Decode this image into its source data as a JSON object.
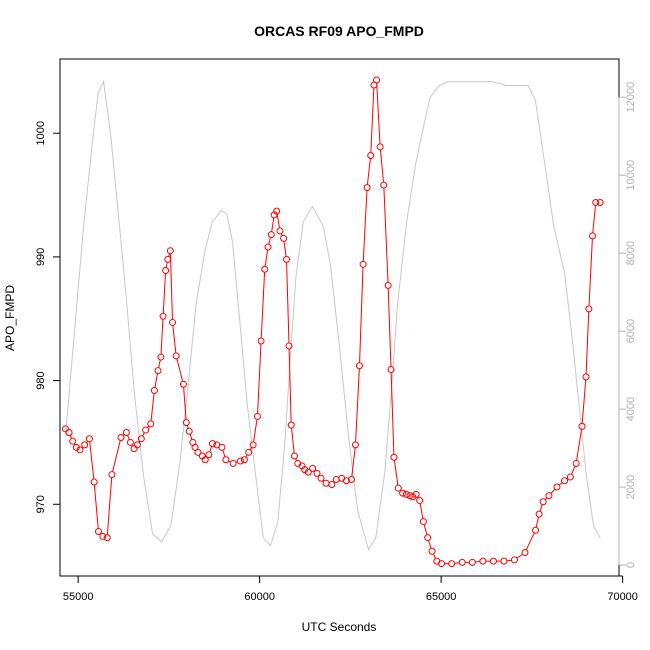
{
  "chart_data": {
    "type": "line",
    "title": "ORCAS RF09 APO_FMPD",
    "xlabel": "UTC Seconds",
    "ylabel": "APO_FMPD",
    "xlim": [
      54500,
      69900
    ],
    "ylim": [
      964.2,
      1006.0
    ],
    "y2lim": [
      -280,
      12980
    ],
    "x_ticks": [
      55000,
      60000,
      65000,
      70000
    ],
    "y_ticks": [
      970,
      980,
      990,
      1000
    ],
    "y2_ticks": [
      0,
      2000,
      4000,
      6000,
      8000,
      10000,
      12000
    ],
    "grid": false,
    "legend": "none",
    "colors": {
      "primary": "#ff0000",
      "secondary": "#c8c8c8",
      "axis": "#000000",
      "right_axis": "#b0b0b0"
    },
    "series": [
      {
        "role": "primary",
        "marker": "open-circle",
        "x": [
          54650,
          54750,
          54850,
          54950,
          55050,
          55180,
          55310,
          55440,
          55560,
          55680,
          55800,
          55930,
          56180,
          56330,
          56440,
          56540,
          56630,
          56740,
          56860,
          57000,
          57100,
          57200,
          57280,
          57340,
          57410,
          57470,
          57540,
          57600,
          57700,
          57900,
          57980,
          58060,
          58160,
          58220,
          58300,
          58420,
          58500,
          58600,
          58700,
          58820,
          58960,
          59070,
          59270,
          59470,
          59580,
          59700,
          59820,
          59940,
          60040,
          60140,
          60230,
          60320,
          60400,
          60470,
          60560,
          60660,
          60740,
          60810,
          60870,
          60960,
          61050,
          61170,
          61240,
          61340,
          61460,
          61580,
          61690,
          61830,
          61990,
          62110,
          62260,
          62390,
          62530,
          62640,
          62750,
          62850,
          62960,
          63060,
          63150,
          63220,
          63320,
          63420,
          63540,
          63620,
          63700,
          63820,
          63940,
          64040,
          64140,
          64220,
          64310,
          64410,
          64510,
          64630,
          64750,
          64880,
          65010,
          65290,
          65580,
          65860,
          66150,
          66440,
          66730,
          67020,
          67310,
          67600,
          67700,
          67810,
          67970,
          68190,
          68400,
          68560,
          68720,
          68880,
          68990,
          69070,
          69170,
          69260,
          69380
        ],
        "y": [
          976.1,
          975.8,
          975.1,
          974.6,
          974.4,
          974.8,
          975.3,
          971.8,
          967.8,
          967.4,
          967.3,
          972.4,
          975.4,
          975.8,
          975.0,
          974.5,
          974.8,
          975.3,
          976.0,
          976.5,
          979.2,
          980.8,
          981.9,
          985.2,
          988.9,
          989.8,
          990.5,
          984.7,
          982.0,
          979.7,
          976.6,
          975.9,
          975.0,
          974.6,
          974.2,
          973.9,
          973.6,
          974.0,
          974.9,
          974.8,
          974.6,
          973.6,
          973.3,
          973.5,
          973.6,
          974.2,
          974.8,
          977.1,
          983.2,
          989.0,
          990.8,
          991.8,
          993.4,
          993.7,
          992.1,
          991.5,
          989.8,
          982.8,
          976.4,
          973.9,
          973.3,
          973.1,
          972.8,
          972.6,
          972.9,
          972.5,
          972.1,
          971.7,
          971.6,
          972.0,
          972.1,
          971.9,
          972.0,
          974.8,
          981.2,
          989.4,
          995.6,
          998.2,
          1003.9,
          1004.3,
          998.9,
          995.8,
          987.7,
          980.9,
          973.8,
          971.3,
          970.9,
          970.8,
          970.7,
          970.6,
          970.8,
          970.3,
          968.6,
          967.3,
          966.2,
          965.4,
          965.2,
          965.2,
          965.3,
          965.3,
          965.4,
          965.4,
          965.4,
          965.5,
          966.1,
          967.9,
          969.2,
          970.2,
          970.7,
          971.4,
          971.9,
          972.2,
          973.3,
          976.3,
          980.3,
          985.8,
          991.7,
          994.4,
          994.4
        ]
      },
      {
        "role": "secondary",
        "x": [
          54650,
          54900,
          55150,
          55400,
          55550,
          55700,
          55900,
          56150,
          56350,
          56550,
          56800,
          57050,
          57300,
          57550,
          57800,
          58050,
          58250,
          58500,
          58700,
          58950,
          59100,
          59250,
          59450,
          59650,
          59850,
          60100,
          60300,
          60500,
          60700,
          60850,
          61000,
          61200,
          61450,
          61750,
          61950,
          62200,
          62450,
          62700,
          63000,
          63200,
          63450,
          63650,
          63800,
          64050,
          64300,
          64550,
          64700,
          64950,
          65200,
          65450,
          65700,
          66000,
          66400,
          66800,
          67100,
          67400,
          67600,
          67900,
          68100,
          68400,
          68600,
          68800,
          69000,
          69200,
          69380
        ],
        "y": [
          3300,
          6000,
          8700,
          10900,
          12100,
          12400,
          11000,
          8600,
          6600,
          4400,
          2300,
          800,
          600,
          1000,
          2600,
          4800,
          6700,
          8100,
          8800,
          9100,
          9000,
          8300,
          6300,
          4200,
          2600,
          700,
          500,
          1100,
          3200,
          5400,
          7400,
          8800,
          9200,
          8700,
          7700,
          5600,
          3300,
          1400,
          400,
          700,
          2400,
          4700,
          6700,
          8800,
          10300,
          11400,
          12000,
          12300,
          12400,
          12400,
          12400,
          12400,
          12400,
          12300,
          12300,
          12300,
          11900,
          10000,
          8700,
          7500,
          5900,
          4100,
          2300,
          1000,
          700
        ]
      }
    ]
  }
}
